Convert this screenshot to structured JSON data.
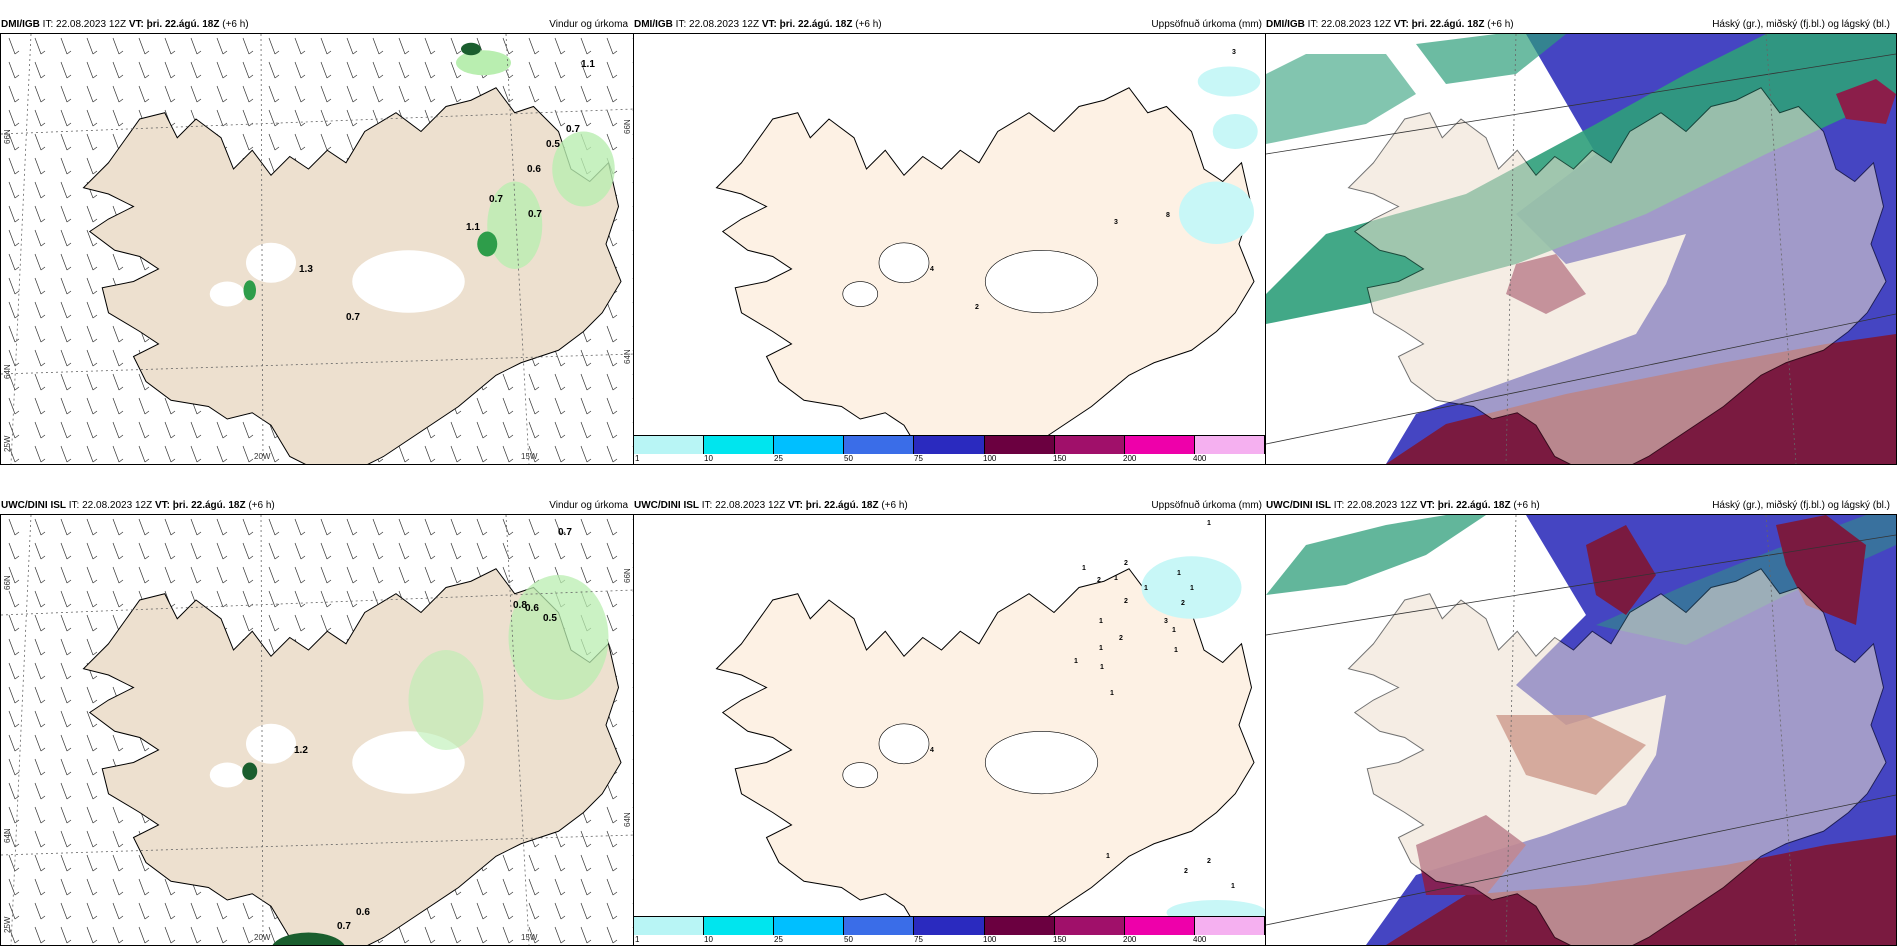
{
  "panels": [
    {
      "model": "DMI/IGB",
      "it": "IT: 22.08.2023 12Z",
      "vt": "VT: þri. 22.ágú. 18Z",
      "lead": "(+6 h)",
      "title": "Vindur og úrkoma"
    },
    {
      "model": "DMI/IGB",
      "it": "IT: 22.08.2023 12Z",
      "vt": "VT: þri. 22.ágú. 18Z",
      "lead": "(+6 h)",
      "title": "Uppsöfnuð úrkoma (mm)"
    },
    {
      "model": "DMI/IGB",
      "it": "IT: 22.08.2023 12Z",
      "vt": "VT: þri. 22.ágú. 18Z",
      "lead": "(+6 h)",
      "title": "Háský (gr.), miðský (fj.bl.) og lágský (bl.)"
    },
    {
      "model": "UWC/DINI ISL",
      "it": "IT: 22.08.2023 12Z",
      "vt": "VT: þri. 22.ágú. 18Z",
      "lead": "(+6 h)",
      "title": "Vindur og úrkoma"
    },
    {
      "model": "UWC/DINI ISL",
      "it": "IT: 22.08.2023 12Z",
      "vt": "VT: þri. 22.ágú. 18Z",
      "lead": "(+6 h)",
      "title": "Uppsöfnuð úrkoma (mm)"
    },
    {
      "model": "UWC/DINI ISL",
      "it": "IT: 22.08.2023 12Z",
      "vt": "VT: þri. 22.ágú. 18Z",
      "lead": "(+6 h)",
      "title": "Háský (gr.), miðský (fj.bl.) og lágský (bl.)"
    }
  ],
  "axis_labels": {
    "lat66": "66N",
    "lat64": "64N",
    "lon20": "20W",
    "lon15": "15W",
    "lon25": "25W"
  },
  "colorbar": {
    "ticks": [
      "1",
      "10",
      "25",
      "50",
      "75",
      "100",
      "150",
      "200",
      "400"
    ],
    "colors": [
      "#b8f5f5",
      "#00e5ee",
      "#00bfff",
      "#3a6de8",
      "#2a2abf",
      "#6b0040",
      "#a0106a",
      "#ee00aa",
      "#f5b0f0"
    ]
  },
  "precip_values_top": [
    "1.1",
    "0.7",
    "0.5",
    "0.6",
    "0.7",
    "0.7",
    "1.1",
    "1.3",
    "0.7"
  ],
  "accum_values_top": [
    "3",
    "3",
    "8",
    "4",
    "2"
  ],
  "precip_values_bottom": [
    "0.7",
    "0.8",
    "0.6",
    "0.5",
    "1.2",
    "0.6",
    "0.7"
  ],
  "accum_values_bottom": [
    "1",
    "1",
    "2",
    "1",
    "2",
    "1",
    "1",
    "1",
    "2",
    "2",
    "3",
    "1",
    "1",
    "2",
    "1",
    "1",
    "1",
    "1",
    "4",
    "1",
    "1",
    "2",
    "2",
    "1"
  ],
  "colors": {
    "land": "#ede0cf",
    "land_light": "#fdf1e4",
    "ocean": "#ffffff",
    "precip_green": "#90ee90",
    "high_cloud": "#2e9e7a",
    "mid_cloud": "#8b1e4a",
    "low_cloud": "#4a4ac8"
  }
}
